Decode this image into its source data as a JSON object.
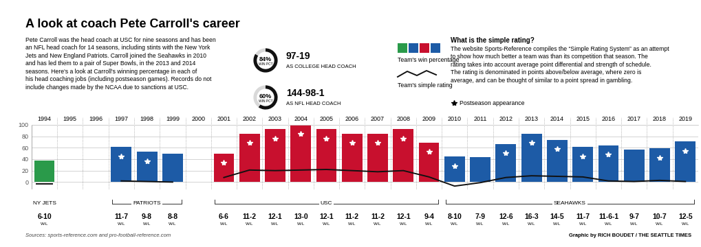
{
  "header": {
    "title": "A look at coach Pete Carroll's career",
    "intro": "Pete Carroll was the head coach at USC for nine seasons and has been an NFL head coach for 14 seasons, including stints with the New York Jets and New England Patriots. Carroll joined the Seahawks in 2010 and has led them to a pair of Super Bowls, in the 2013 and 2014 seasons. Here's a look at Carroll's winning percentage in each of his head coaching jobs (including postseason games). Records do not include changes made by the NCAA due to sanctions at USC.",
    "stats": [
      {
        "pct": 84,
        "pct_text": "84%",
        "pct_caption": "WIN PCT",
        "record": "97-19",
        "caption": "AS COLLEGE HEAD COACH"
      },
      {
        "pct": 60,
        "pct_text": "60%",
        "pct_caption": "WIN PCT",
        "record": "144-98-1",
        "caption": "AS NFL HEAD COACH"
      }
    ]
  },
  "explainer": {
    "heading": "What is the simple rating?",
    "text": "The website Sports-Reference compiles the “Simple Rating System” as an attempt to show how much better a team was than its competition that season. The rating takes into account average point differential and strength of schedule. The rating is denominated in points above/below average, where zero is average, and can be thought of similar to a point spread in gambling."
  },
  "chart_data": {
    "type": "bar",
    "categories": [
      "1994",
      "1995",
      "1996",
      "1997",
      "1998",
      "1999",
      "2000",
      "2001",
      "2002",
      "2003",
      "2004",
      "2005",
      "2006",
      "2007",
      "2008",
      "2009",
      "2010",
      "2011",
      "2012",
      "2013",
      "2014",
      "2015",
      "2016",
      "2017",
      "2018",
      "2019"
    ],
    "series": [
      {
        "name": "Team's win percentage",
        "type": "bar",
        "values": [
          37.5,
          null,
          null,
          61.1,
          52.9,
          50.0,
          null,
          50.0,
          84.6,
          92.3,
          100.0,
          92.3,
          84.6,
          84.6,
          92.3,
          69.2,
          44.4,
          43.8,
          66.7,
          84.2,
          73.7,
          61.1,
          63.9,
          56.3,
          58.8,
          70.6
        ]
      },
      {
        "name": "Team's simple rating",
        "type": "line",
        "color": "#111111",
        "values": [
          -3,
          null,
          null,
          2,
          1,
          0,
          null,
          8,
          21,
          20,
          21,
          22,
          20,
          18,
          20,
          9,
          -7,
          -1,
          8,
          11,
          10,
          9,
          2,
          1,
          3,
          1
        ]
      }
    ],
    "postseason": [
      false,
      false,
      false,
      true,
      true,
      false,
      false,
      true,
      true,
      true,
      true,
      true,
      true,
      true,
      true,
      true,
      true,
      false,
      true,
      true,
      true,
      true,
      true,
      false,
      true,
      true
    ],
    "postseason_label": "Postseason appearance",
    "records": [
      "6-10",
      null,
      null,
      "11-7",
      "9-8",
      "8-8",
      null,
      "6-6",
      "11-2",
      "12-1",
      "13-0",
      "12-1",
      "11-2",
      "11-2",
      "12-1",
      "9-4",
      "8-10",
      "7-9",
      "12-6",
      "16-3",
      "14-5",
      "11-7",
      "11-6-1",
      "9-7",
      "10-7",
      "12-5"
    ],
    "record_unit": "W-L",
    "teams": [
      {
        "name": "NY JETS",
        "first": "1994",
        "last": "1994",
        "color": "#2a9a4a"
      },
      {
        "name": "PATRIOTS",
        "first": "1997",
        "last": "1999",
        "color": "#1d5ba6"
      },
      {
        "name": "USC",
        "first": "2001",
        "last": "2009",
        "color": "#c8102e"
      },
      {
        "name": "SEAHAWKS",
        "first": "2010",
        "last": "2019",
        "color": "#1d5ba6"
      }
    ],
    "ylim": [
      -12,
      100
    ],
    "yticks": [
      0,
      20,
      40,
      60,
      80,
      100
    ],
    "grid": true
  },
  "footer": {
    "sources": "Sources: sports-reference.com and pro-football-reference.com",
    "credit": "Graphic by RICH BOUDET / THE SEATTLE TIMES"
  }
}
